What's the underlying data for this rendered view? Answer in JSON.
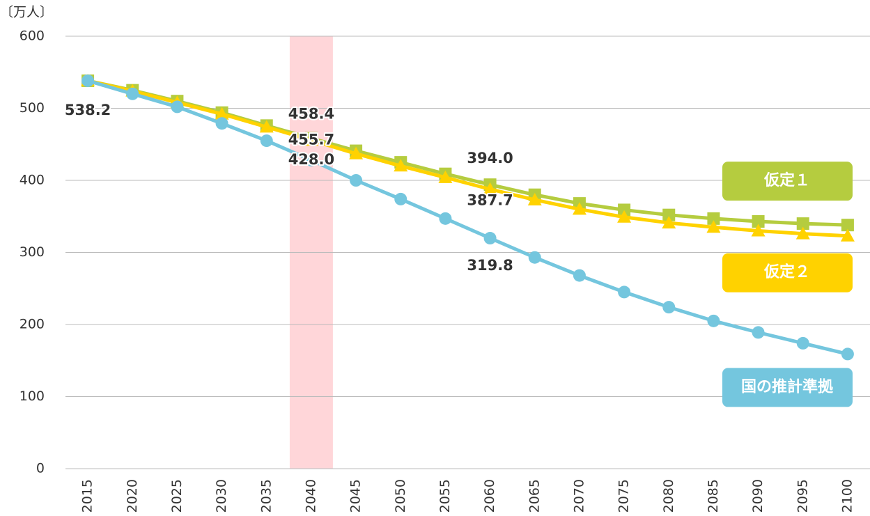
{
  "chart_data": {
    "type": "line",
    "y_label": "〔万人〕",
    "categories": [
      "2015",
      "2020",
      "2025",
      "2030",
      "2035",
      "2040",
      "2045",
      "2050",
      "2055",
      "2060",
      "2065",
      "2070",
      "2075",
      "2080",
      "2085",
      "2090",
      "2095",
      "2100"
    ],
    "highlight_index": 5,
    "highlight_color": "#ffd6d9",
    "ylim": [
      0,
      600
    ],
    "yticks": [
      0,
      100,
      200,
      300,
      400,
      500,
      600
    ],
    "grid": true,
    "series": [
      {
        "name": "仮定１",
        "color": "#b5cc3f",
        "marker": "square",
        "values": [
          538.2,
          525,
          510,
          494,
          476,
          458.4,
          441,
          425,
          409,
          394.0,
          380,
          368,
          359,
          352,
          347,
          343,
          340,
          338
        ],
        "value_labels": [
          "538.2",
          null,
          null,
          null,
          null,
          "458.4",
          null,
          null,
          null,
          "394.0",
          null,
          null,
          null,
          null,
          null,
          null,
          null,
          null
        ]
      },
      {
        "name": "仮定２",
        "color": "#ffd200",
        "marker": "triangle",
        "values": [
          538.2,
          524,
          508,
          492,
          474,
          455.7,
          437,
          420,
          404,
          387.7,
          373,
          360,
          349,
          341,
          335,
          330,
          326,
          323
        ],
        "value_labels": [
          null,
          null,
          null,
          null,
          null,
          "455.7",
          null,
          null,
          null,
          "387.7",
          null,
          null,
          null,
          null,
          null,
          null,
          null,
          null
        ]
      },
      {
        "name": "国の推計準拠",
        "color": "#74c6de",
        "marker": "circle",
        "values": [
          538.2,
          520,
          502,
          479,
          455,
          428.0,
          400,
          374,
          347,
          319.8,
          293,
          268,
          245,
          224,
          205,
          189,
          174,
          159
        ],
        "value_labels": [
          null,
          null,
          null,
          null,
          null,
          "428.0",
          null,
          null,
          null,
          "319.8",
          null,
          null,
          null,
          null,
          null,
          null,
          null,
          null
        ]
      }
    ]
  }
}
